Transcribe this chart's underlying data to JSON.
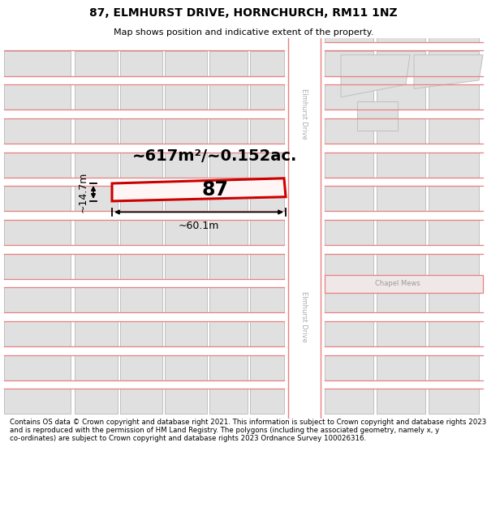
{
  "title_line1": "87, ELMHURST DRIVE, HORNCHURCH, RM11 1NZ",
  "title_line2": "Map shows position and indicative extent of the property.",
  "footer_text": "Contains OS data © Crown copyright and database right 2021. This information is subject to Crown copyright and database rights 2023 and is reproduced with the permission of HM Land Registry. The polygons (including the associated geometry, namely x, y co-ordinates) are subject to Crown copyright and database rights 2023 Ordnance Survey 100026316.",
  "bg_color": "#ffffff",
  "map_bg": "#f0f0f0",
  "building_fill": "#e0e0e0",
  "building_stroke": "#c0c0c0",
  "road_stroke": "#e88080",
  "road_fill": "#f8f0f0",
  "highlight_stroke": "#cc0000",
  "highlight_fill": "#fff5f5",
  "label_87": "87",
  "area_label": "~617m²/~0.152ac.",
  "width_label": "~60.1m",
  "height_label": "~14.7m",
  "road_label_upper": "Elmhurst Drive",
  "road_label_lower": "Elmhurst Drive",
  "chapel_mews_label": "Chapel Mews",
  "title_fontsize": 10,
  "subtitle_fontsize": 8,
  "footer_fontsize": 6.2
}
